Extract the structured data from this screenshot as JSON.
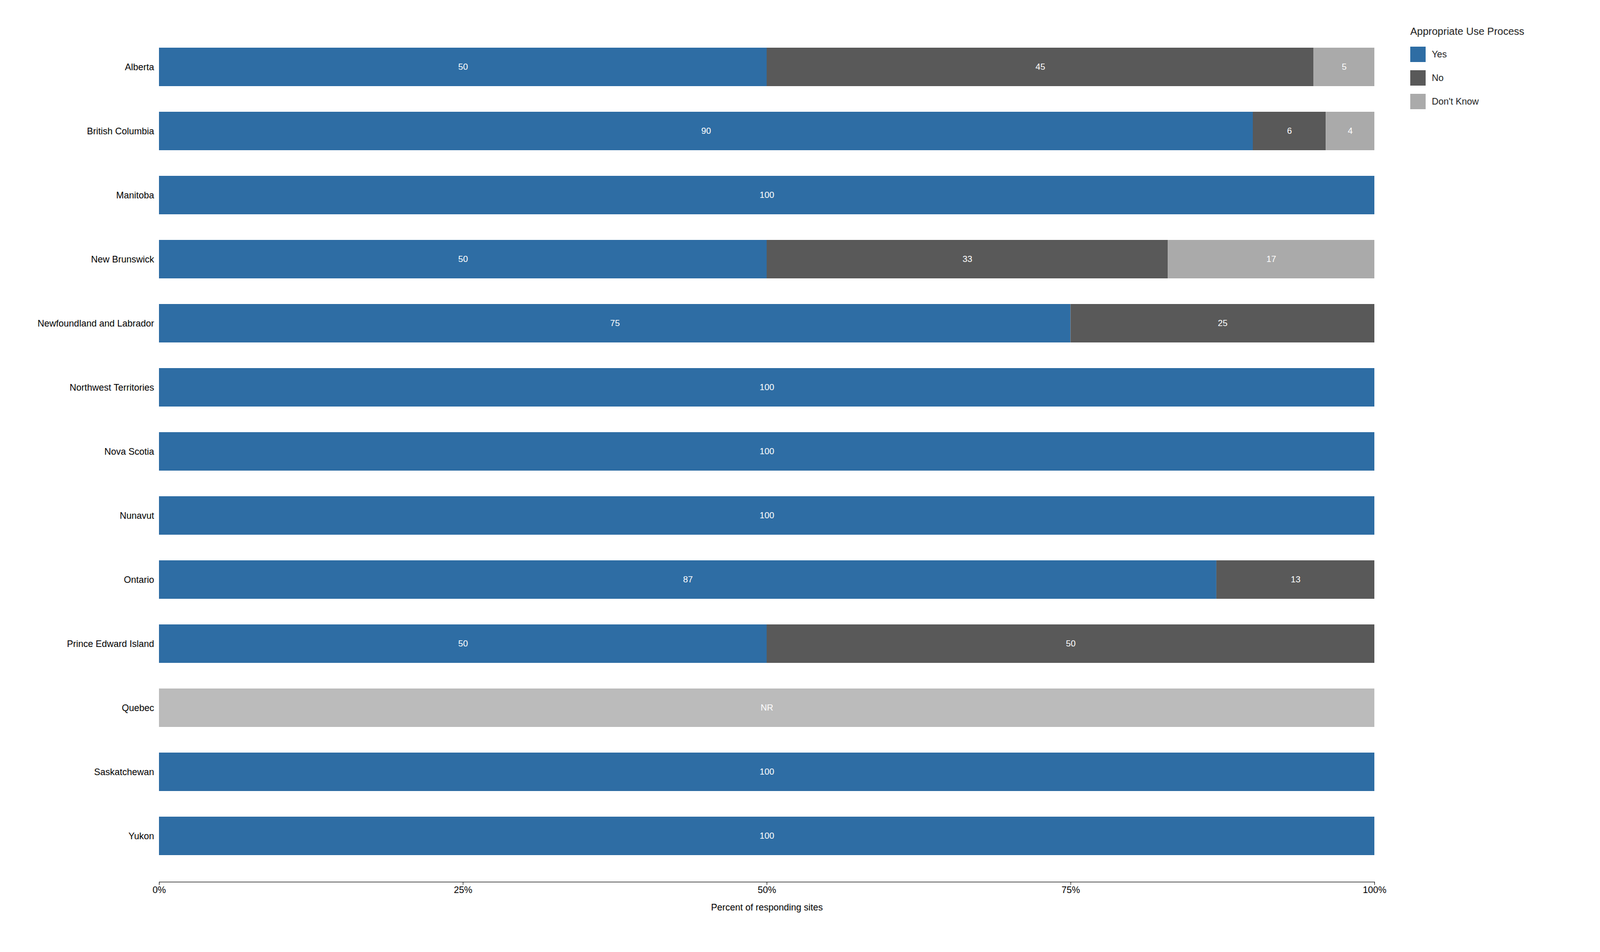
{
  "chart_data": {
    "type": "bar",
    "orientation": "horizontal",
    "stacked": true,
    "data_labels": true,
    "grid": false,
    "legend": "right",
    "legend_title": "Appropriate Use Process",
    "xlabel": "Percent of responding sites",
    "categories": [
      "Alberta",
      "British Columbia",
      "Manitoba",
      "New Brunswick",
      "Newfoundland and Labrador",
      "Northwest Territories",
      "Nova Scotia",
      "Nunavut",
      "Ontario",
      "Prince Edward Island",
      "Quebec",
      "Saskatchewan",
      "Yukon"
    ],
    "series": [
      {
        "name": "Yes",
        "color": "#2E6DA4",
        "values": [
          50,
          90,
          100,
          50,
          75,
          100,
          100,
          100,
          87,
          50,
          0,
          100,
          100
        ],
        "value_labels": [
          "50",
          "90",
          "100",
          "50",
          "75",
          "100",
          "100",
          "100",
          "87",
          "50",
          null,
          "100",
          "100"
        ]
      },
      {
        "name": "No",
        "color": "#595959",
        "values": [
          45,
          6,
          0,
          33,
          25,
          0,
          0,
          0,
          13,
          50,
          0,
          0,
          0
        ],
        "value_labels": [
          "45",
          "6",
          null,
          "33",
          "25",
          null,
          null,
          null,
          "13",
          "50",
          null,
          null,
          null
        ]
      },
      {
        "name": "Don't Know",
        "color": "#AAAAAA",
        "values": [
          5,
          4,
          0,
          17,
          0,
          0,
          0,
          0,
          0,
          0,
          0,
          0,
          0
        ],
        "value_labels": [
          "5",
          "4",
          null,
          "17",
          null,
          null,
          null,
          null,
          null,
          null,
          null,
          null,
          null
        ]
      },
      {
        "color": "#BBBBBB",
        "values": [
          0,
          0,
          0,
          0,
          0,
          0,
          0,
          0,
          0,
          0,
          100,
          0,
          0
        ],
        "value_labels": [
          null,
          null,
          null,
          null,
          null,
          null,
          null,
          null,
          null,
          null,
          "NR",
          null,
          null
        ]
      }
    ],
    "xlim": [
      0,
      100
    ],
    "xticks": [
      {
        "value": 0,
        "label": "0%"
      },
      {
        "value": 25,
        "label": "25%"
      },
      {
        "value": 50,
        "label": "50%"
      },
      {
        "value": 75,
        "label": "75%"
      },
      {
        "value": 100,
        "label": "100%"
      }
    ]
  }
}
